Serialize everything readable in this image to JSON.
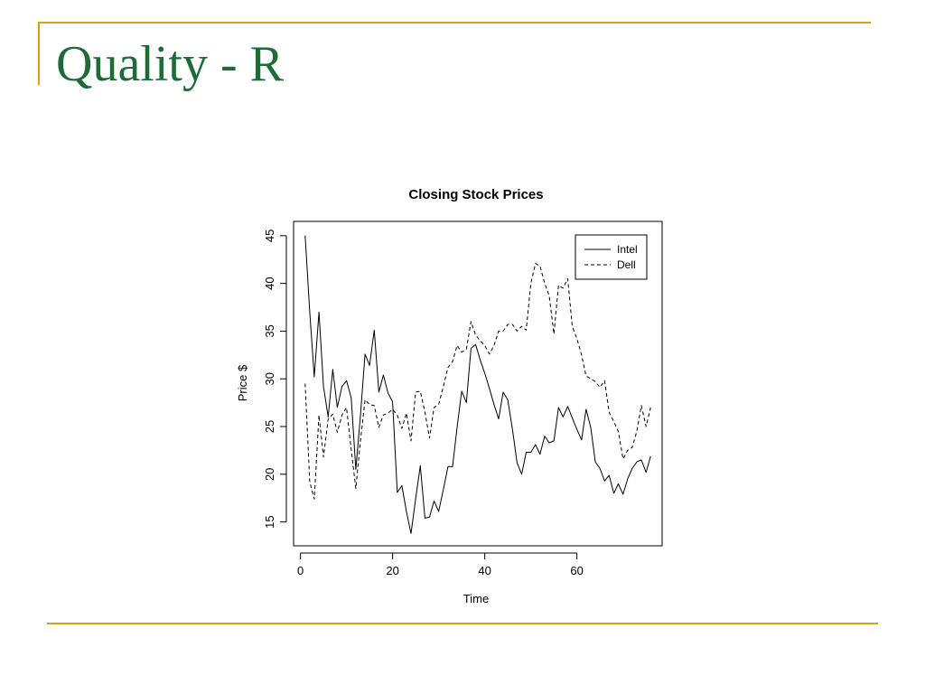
{
  "slide": {
    "title": "Quality - R"
  },
  "colors": {
    "title": "#1e6b3a",
    "accent_rule": "#d4a017",
    "ink": "#000000"
  },
  "chart_data": {
    "type": "line",
    "title": "Closing Stock Prices",
    "xlabel": "Time",
    "ylabel": "Price $",
    "xlim": [
      -1.5,
      78.5
    ],
    "ylim": [
      12.5,
      46.5
    ],
    "xticks": [
      0,
      20,
      40,
      60
    ],
    "yticks": [
      15,
      20,
      25,
      30,
      35,
      40,
      45
    ],
    "legend_position": "top-right",
    "series": [
      {
        "name": "Intel",
        "line_style": "solid",
        "x": [
          1,
          2,
          3,
          4,
          5,
          6,
          7,
          8,
          9,
          10,
          11,
          12,
          13,
          14,
          15,
          16,
          17,
          18,
          19,
          20,
          21,
          22,
          23,
          24,
          25,
          26,
          27,
          28,
          29,
          30,
          31,
          32,
          33,
          34,
          35,
          36,
          37,
          38,
          39,
          40,
          41,
          42,
          43,
          44,
          45,
          46,
          47,
          48,
          49,
          50,
          51,
          52,
          53,
          54,
          55,
          56,
          57,
          58,
          59,
          60,
          61,
          62,
          63,
          64,
          65,
          66,
          67,
          68,
          69,
          70,
          71,
          72,
          73,
          74,
          75,
          76
        ],
        "values": [
          45.0,
          37.0,
          30.2,
          37.0,
          29.2,
          26.0,
          31.0,
          27.0,
          29.2,
          29.8,
          28.0,
          20.5,
          26.0,
          32.6,
          31.4,
          35.1,
          28.6,
          30.4,
          28.5,
          27.6,
          18.1,
          18.8,
          16.1,
          13.8,
          17.4,
          20.9,
          15.4,
          15.5,
          17.2,
          16.1,
          18.4,
          20.8,
          20.8,
          24.9,
          28.7,
          27.5,
          33.2,
          33.6,
          32.0,
          30.6,
          29.0,
          27.3,
          25.8,
          28.6,
          27.8,
          24.7,
          21.2,
          20.0,
          22.3,
          22.3,
          23.1,
          22.1,
          24.0,
          23.3,
          23.5,
          27.0,
          26.0,
          27.1,
          25.9,
          24.7,
          23.6,
          26.8,
          24.9,
          21.3,
          20.6,
          19.3,
          19.9,
          18.0,
          19.0,
          17.9,
          19.5,
          20.6,
          21.3,
          21.5,
          20.2,
          21.9
        ]
      },
      {
        "name": "Dell",
        "line_style": "dashed",
        "x": [
          1,
          2,
          3,
          4,
          5,
          6,
          7,
          8,
          9,
          10,
          11,
          12,
          13,
          14,
          15,
          16,
          17,
          18,
          19,
          20,
          21,
          22,
          23,
          24,
          25,
          26,
          27,
          28,
          29,
          30,
          31,
          32,
          33,
          34,
          35,
          36,
          37,
          38,
          39,
          40,
          41,
          42,
          43,
          44,
          45,
          46,
          47,
          48,
          49,
          50,
          51,
          52,
          53,
          54,
          55,
          56,
          57,
          58,
          59,
          60,
          61,
          62,
          63,
          64,
          65,
          66,
          67,
          68,
          69,
          70,
          71,
          72,
          73,
          74,
          75,
          76
        ],
        "values": [
          29.5,
          19.2,
          17.4,
          26.2,
          21.8,
          25.8,
          26.3,
          24.4,
          26.2,
          27.0,
          22.6,
          18.5,
          23.4,
          27.8,
          27.3,
          27.2,
          24.9,
          26.2,
          26.4,
          26.8,
          26.2,
          24.8,
          26.4,
          23.5,
          28.6,
          28.7,
          26.5,
          23.8,
          27.0,
          27.3,
          29.2,
          31.2,
          31.8,
          33.5,
          32.8,
          33.1,
          36.0,
          34.6,
          34.0,
          33.5,
          32.6,
          33.5,
          35.0,
          35.0,
          35.7,
          35.7,
          35.0,
          35.5,
          35.1,
          40.0,
          42.1,
          41.8,
          40.0,
          38.7,
          34.7,
          39.8,
          39.5,
          40.5,
          35.5,
          34.2,
          32.5,
          30.3,
          30.0,
          29.7,
          29.1,
          29.8,
          26.5,
          25.5,
          24.5,
          21.6,
          22.5,
          22.8,
          24.5,
          27.2,
          25.0,
          27.0
        ]
      }
    ]
  }
}
